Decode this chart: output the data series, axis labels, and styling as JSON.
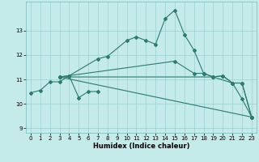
{
  "xlabel": "Humidex (Indice chaleur)",
  "xlim": [
    -0.5,
    23.5
  ],
  "ylim": [
    8.8,
    14.2
  ],
  "yticks": [
    9,
    10,
    11,
    12,
    13
  ],
  "xticks": [
    0,
    1,
    2,
    3,
    4,
    5,
    6,
    7,
    8,
    9,
    10,
    11,
    12,
    13,
    14,
    15,
    16,
    17,
    18,
    19,
    20,
    21,
    22,
    23
  ],
  "bg_color": "#c5eaea",
  "line_color": "#2d7a6e",
  "grid_color": "#9dcfcf",
  "lines": [
    {
      "x": [
        0,
        1,
        2,
        3,
        4,
        5,
        6,
        7
      ],
      "y": [
        10.45,
        10.55,
        10.9,
        10.9,
        11.15,
        10.25,
        10.5,
        10.5
      ]
    },
    {
      "x": [
        3,
        4,
        7,
        8,
        10,
        11,
        12,
        13,
        14,
        15,
        16,
        17,
        18,
        19,
        20,
        21,
        22,
        23
      ],
      "y": [
        11.1,
        11.15,
        11.85,
        11.95,
        12.6,
        12.75,
        12.6,
        12.45,
        13.5,
        13.85,
        12.85,
        12.2,
        11.25,
        11.1,
        11.15,
        10.85,
        10.2,
        9.45
      ]
    },
    {
      "x": [
        3,
        23
      ],
      "y": [
        11.1,
        9.45
      ]
    },
    {
      "x": [
        3,
        19,
        21,
        22,
        23
      ],
      "y": [
        11.1,
        11.1,
        10.85,
        10.85,
        9.45
      ]
    },
    {
      "x": [
        3,
        15,
        17,
        18,
        19,
        20,
        21,
        22,
        23
      ],
      "y": [
        11.1,
        11.75,
        11.25,
        11.25,
        11.1,
        11.15,
        10.85,
        10.85,
        9.45
      ]
    }
  ]
}
